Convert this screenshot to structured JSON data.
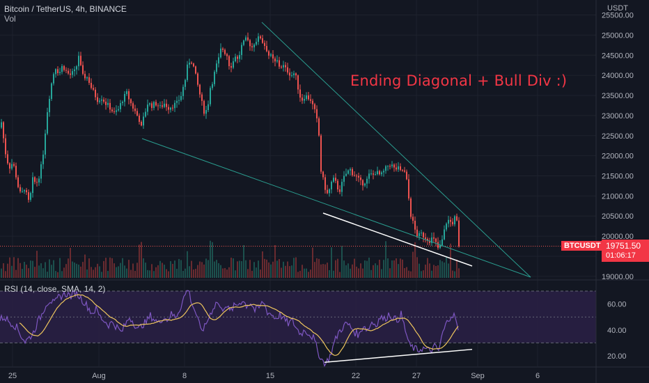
{
  "header": {
    "title": "Bitcoin / TetherUS, 4h, BINANCE",
    "volume_label": "Vol"
  },
  "price_axis": {
    "currency": "USDT",
    "ticks": [
      "25500.00",
      "25000.00",
      "24500.00",
      "24000.00",
      "23500.00",
      "23000.00",
      "22500.00",
      "22000.00",
      "21500.00",
      "21000.00",
      "20500.00",
      "20000.00",
      "19500.00",
      "19000.00"
    ]
  },
  "last_price": {
    "symbol": "BTCUSDT",
    "value": "19751.50",
    "countdown": "01:06:17"
  },
  "annotation": "Ending Diagonal + Bull Div :)",
  "rsi": {
    "label": "RSI (14, close, SMA, 14, 2)",
    "ticks": [
      "60.00",
      "40.00",
      "20.00"
    ]
  },
  "time_axis": {
    "ticks": [
      "25",
      "Aug",
      "8",
      "15",
      "22",
      "27",
      "Sep",
      "6"
    ]
  },
  "colors": {
    "background": "#131722",
    "up": "#26a69a",
    "down": "#ef5350",
    "trendline": "#2a9d8f",
    "support_line": "#ffffff",
    "rsi_line": "#7e57c2",
    "rsi_ma": "#f0c75e",
    "rsi_band": "#2a2045",
    "annotation": "#f23645"
  },
  "chart_data": {
    "type": "candlestick",
    "symbol": "BTCUSDT",
    "timeframe": "4h",
    "ylim": [
      18980,
      25700
    ],
    "price_path": [
      [
        0,
        22700
      ],
      [
        3,
        22900
      ],
      [
        6,
        22200
      ],
      [
        9,
        22000
      ],
      [
        13,
        21700
      ],
      [
        17,
        21800
      ],
      [
        21,
        21700
      ],
      [
        25,
        21300
      ],
      [
        30,
        21000
      ],
      [
        35,
        21200
      ],
      [
        42,
        20800
      ],
      [
        47,
        21400
      ],
      [
        52,
        21300
      ],
      [
        58,
        21600
      ],
      [
        63,
        22200
      ],
      [
        67,
        23000
      ],
      [
        72,
        23600
      ],
      [
        76,
        24000
      ],
      [
        80,
        24200
      ],
      [
        85,
        24050
      ],
      [
        90,
        24250
      ],
      [
        95,
        24100
      ],
      [
        100,
        24000
      ],
      [
        104,
        24050
      ],
      [
        108,
        24100
      ],
      [
        111,
        24300
      ],
      [
        113,
        24500
      ],
      [
        117,
        24100
      ],
      [
        120,
        23900
      ],
      [
        123,
        24000
      ],
      [
        127,
        23900
      ],
      [
        131,
        23700
      ],
      [
        135,
        23550
      ],
      [
        140,
        23400
      ],
      [
        146,
        23450
      ],
      [
        152,
        23300
      ],
      [
        158,
        23200
      ],
      [
        164,
        23050
      ],
      [
        170,
        23150
      ],
      [
        176,
        23400
      ],
      [
        182,
        23550
      ],
      [
        188,
        23300
      ],
      [
        194,
        23100
      ],
      [
        200,
        22900
      ],
      [
        203,
        22700
      ],
      [
        207,
        23000
      ],
      [
        212,
        23300
      ],
      [
        218,
        23250
      ],
      [
        224,
        23300
      ],
      [
        230,
        23200
      ],
      [
        236,
        23300
      ],
      [
        242,
        23200
      ],
      [
        248,
        23250
      ],
      [
        254,
        23300
      ],
      [
        260,
        23500
      ],
      [
        266,
        23900
      ],
      [
        270,
        24300
      ],
      [
        274,
        24400
      ],
      [
        278,
        24200
      ],
      [
        282,
        23900
      ],
      [
        286,
        23600
      ],
      [
        290,
        23300
      ],
      [
        294,
        23050
      ],
      [
        298,
        23200
      ],
      [
        302,
        23700
      ],
      [
        306,
        23900
      ],
      [
        310,
        24200
      ],
      [
        314,
        24400
      ],
      [
        318,
        24700
      ],
      [
        322,
        24600
      ],
      [
        326,
        24500
      ],
      [
        330,
        24200
      ],
      [
        334,
        24300
      ],
      [
        338,
        24500
      ],
      [
        342,
        24350
      ],
      [
        346,
        24700
      ],
      [
        350,
        24800
      ],
      [
        354,
        24900
      ],
      [
        358,
        24800
      ],
      [
        362,
        24700
      ],
      [
        366,
        24850
      ],
      [
        370,
        24900
      ],
      [
        374,
        24950
      ],
      [
        378,
        24800
      ],
      [
        382,
        24700
      ],
      [
        386,
        24500
      ],
      [
        390,
        24450
      ],
      [
        394,
        24300
      ],
      [
        398,
        24350
      ],
      [
        402,
        24200
      ],
      [
        406,
        24250
      ],
      [
        410,
        24150
      ],
      [
        414,
        24100
      ],
      [
        418,
        24000
      ],
      [
        422,
        24050
      ],
      [
        426,
        23900
      ],
      [
        430,
        23500
      ],
      [
        434,
        23400
      ],
      [
        438,
        23500
      ],
      [
        442,
        23450
      ],
      [
        446,
        23400
      ],
      [
        450,
        23200
      ],
      [
        454,
        23000
      ],
      [
        458,
        22500
      ],
      [
        460,
        21700
      ],
      [
        464,
        21400
      ],
      [
        467,
        21200
      ],
      [
        471,
        21000
      ],
      [
        475,
        21300
      ],
      [
        479,
        21400
      ],
      [
        483,
        21300
      ],
      [
        487,
        21100
      ],
      [
        491,
        21300
      ],
      [
        495,
        21500
      ],
      [
        499,
        21600
      ],
      [
        503,
        21650
      ],
      [
        507,
        21550
      ],
      [
        511,
        21500
      ],
      [
        515,
        21400
      ],
      [
        519,
        21300
      ],
      [
        523,
        21350
      ],
      [
        527,
        21400
      ],
      [
        531,
        21550
      ],
      [
        535,
        21500
      ],
      [
        539,
        21600
      ],
      [
        543,
        21550
      ],
      [
        547,
        21500
      ],
      [
        551,
        21600
      ],
      [
        555,
        21700
      ],
      [
        559,
        21800
      ],
      [
        563,
        21750
      ],
      [
        567,
        21650
      ],
      [
        571,
        21700
      ],
      [
        575,
        21600
      ],
      [
        579,
        21650
      ],
      [
        583,
        21500
      ],
      [
        586,
        21100
      ],
      [
        589,
        20600
      ],
      [
        592,
        20400
      ],
      [
        595,
        20200
      ],
      [
        598,
        20050
      ],
      [
        601,
        20000
      ],
      [
        605,
        20050
      ],
      [
        609,
        20000
      ],
      [
        613,
        19950
      ],
      [
        617,
        19900
      ],
      [
        621,
        19950
      ],
      [
        625,
        19850
      ],
      [
        629,
        19700
      ],
      [
        633,
        19750
      ],
      [
        637,
        20050
      ],
      [
        641,
        20350
      ],
      [
        645,
        20400
      ],
      [
        649,
        20300
      ],
      [
        653,
        20450
      ],
      [
        657,
        20300
      ],
      [
        660,
        19750
      ]
    ],
    "last_value": 19751.5,
    "annotations": [
      "Ending Diagonal + Bull Div :)"
    ],
    "rsi": {
      "params": "14, close, SMA, 14, 2",
      "ylim": [
        13,
        77
      ],
      "bands": [
        30,
        70
      ],
      "midline": 50,
      "path": [
        [
          0,
          48
        ],
        [
          6,
          50
        ],
        [
          12,
          47
        ],
        [
          18,
          45
        ],
        [
          24,
          42
        ],
        [
          30,
          36
        ],
        [
          36,
          31
        ],
        [
          42,
          34
        ],
        [
          48,
          38
        ],
        [
          54,
          46
        ],
        [
          60,
          52
        ],
        [
          66,
          60
        ],
        [
          72,
          63
        ],
        [
          78,
          60
        ],
        [
          84,
          65
        ],
        [
          90,
          67
        ],
        [
          96,
          68
        ],
        [
          102,
          66
        ],
        [
          108,
          69
        ],
        [
          114,
          66
        ],
        [
          120,
          62
        ],
        [
          126,
          58
        ],
        [
          132,
          53
        ],
        [
          138,
          56
        ],
        [
          144,
          50
        ],
        [
          150,
          47
        ],
        [
          156,
          44
        ],
        [
          162,
          46
        ],
        [
          168,
          42
        ],
        [
          174,
          38
        ],
        [
          180,
          44
        ],
        [
          186,
          50
        ],
        [
          192,
          46
        ],
        [
          198,
          40
        ],
        [
          204,
          44
        ],
        [
          210,
          46
        ],
        [
          216,
          51
        ],
        [
          222,
          48
        ],
        [
          228,
          45
        ],
        [
          234,
          50
        ],
        [
          240,
          48
        ],
        [
          246,
          52
        ],
        [
          252,
          50
        ],
        [
          258,
          56
        ],
        [
          264,
          65
        ],
        [
          270,
          72
        ],
        [
          276,
          60
        ],
        [
          282,
          52
        ],
        [
          288,
          40
        ],
        [
          294,
          42
        ],
        [
          300,
          50
        ],
        [
          306,
          57
        ],
        [
          312,
          62
        ],
        [
          318,
          55
        ],
        [
          324,
          60
        ],
        [
          330,
          54
        ],
        [
          336,
          58
        ],
        [
          342,
          60
        ],
        [
          348,
          63
        ],
        [
          354,
          59
        ],
        [
          360,
          61
        ],
        [
          366,
          55
        ],
        [
          372,
          57
        ],
        [
          378,
          62
        ],
        [
          384,
          54
        ],
        [
          390,
          52
        ],
        [
          396,
          49
        ],
        [
          402,
          52
        ],
        [
          408,
          48
        ],
        [
          414,
          45
        ],
        [
          420,
          47
        ],
        [
          426,
          41
        ],
        [
          432,
          37
        ],
        [
          438,
          40
        ],
        [
          444,
          37
        ],
        [
          450,
          34
        ],
        [
          456,
          24
        ],
        [
          462,
          17
        ],
        [
          468,
          14
        ],
        [
          474,
          20
        ],
        [
          480,
          30
        ],
        [
          486,
          38
        ],
        [
          492,
          42
        ],
        [
          498,
          45
        ],
        [
          504,
          42
        ],
        [
          510,
          38
        ],
        [
          516,
          36
        ],
        [
          522,
          44
        ],
        [
          528,
          40
        ],
        [
          534,
          46
        ],
        [
          540,
          44
        ],
        [
          546,
          50
        ],
        [
          552,
          48
        ],
        [
          558,
          52
        ],
        [
          564,
          50
        ],
        [
          570,
          47
        ],
        [
          576,
          52
        ],
        [
          582,
          40
        ],
        [
          588,
          28
        ],
        [
          594,
          26
        ],
        [
          600,
          24
        ],
        [
          606,
          26
        ],
        [
          612,
          25
        ],
        [
          618,
          24
        ],
        [
          624,
          27
        ],
        [
          630,
          24
        ],
        [
          636,
          38
        ],
        [
          642,
          46
        ],
        [
          648,
          52
        ],
        [
          654,
          50
        ],
        [
          658,
          38
        ]
      ]
    },
    "xlabels": [
      "25",
      "Aug",
      "8",
      "15",
      "22",
      "27",
      "Sep",
      "6"
    ]
  }
}
